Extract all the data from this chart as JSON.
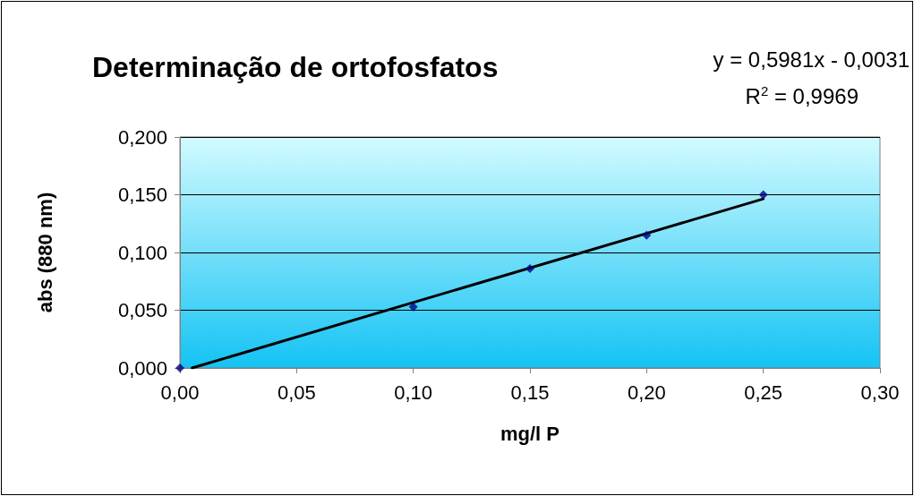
{
  "chart_data": {
    "type": "scatter",
    "title": "Determinação de ortofosfatos",
    "xlabel": "mg/l P",
    "ylabel": "abs (880 nm)",
    "annotations": [
      "y = 0,5981x - 0,0031",
      "R$^{2}$ = 0,9969"
    ],
    "series": [
      {
        "color": "#000080",
        "x": [
          0,
          0.1,
          0.15,
          0.2,
          0.25
        ],
        "values": [
          0,
          0.053,
          0.086,
          0.115,
          0.15
        ]
      },
      {
        "type": "line",
        "color": "#000000",
        "marker": "none",
        "line_style": "solid",
        "x": [
          0.0052,
          0.25
        ],
        "values": [
          0,
          0.1464
        ]
      }
    ],
    "marker": "diamond",
    "grid": "y",
    "xlim": [
      0,
      0.3
    ],
    "xticks": [
      {
        "value": 0,
        "label": "0,00"
      },
      {
        "value": 0.05,
        "label": "0,05"
      },
      {
        "value": 0.1,
        "label": "0,10"
      },
      {
        "value": 0.15,
        "label": "0,15"
      },
      {
        "value": 0.2,
        "label": "0,20"
      },
      {
        "value": 0.25,
        "label": "0,25"
      },
      {
        "value": 0.3,
        "label": "0,30"
      }
    ],
    "ylim": [
      0,
      0.2
    ],
    "yticks": [
      {
        "value": 0,
        "label": "0,000"
      },
      {
        "value": 0.05,
        "label": "0,050"
      },
      {
        "value": 0.1,
        "label": "0,100"
      },
      {
        "value": 0.15,
        "label": "0,150"
      },
      {
        "value": 0.2,
        "label": "0,200"
      }
    ]
  }
}
